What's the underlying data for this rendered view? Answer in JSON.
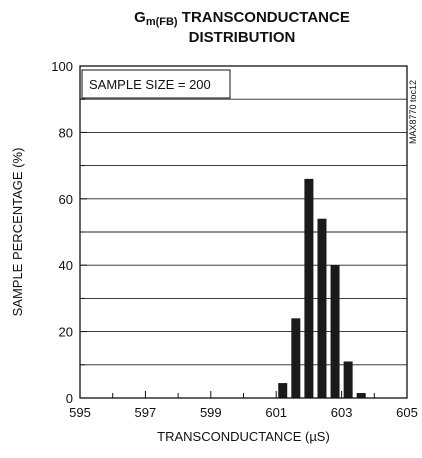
{
  "chart_data": {
    "type": "bar",
    "title_main": "G",
    "title_sub": "m(FB)",
    "title_rest": "TRANSCONDUCTANCE",
    "title_line2": "DISTRIBUTION",
    "xlabel": "TRANSCONDUCTANCE (µS)",
    "ylabel": "SAMPLE PERCENTAGE (%)",
    "annotation": "SAMPLE SIZE = 200",
    "side_label": "MAX8770 toc12",
    "xlim": [
      595,
      605
    ],
    "ylim": [
      0,
      100
    ],
    "grid": true,
    "x_ticks": [
      "595",
      "597",
      "599",
      "601",
      "603",
      "605"
    ],
    "y_ticks": [
      "0",
      "20",
      "40",
      "60",
      "80",
      "100"
    ],
    "x": [
      601.2,
      601.6,
      602.0,
      602.4,
      602.8,
      603.2,
      603.6,
      604.0
    ],
    "values": [
      4.5,
      24,
      66,
      54,
      40,
      11,
      1.5,
      0
    ],
    "bar_color": "#1a1a1a"
  }
}
